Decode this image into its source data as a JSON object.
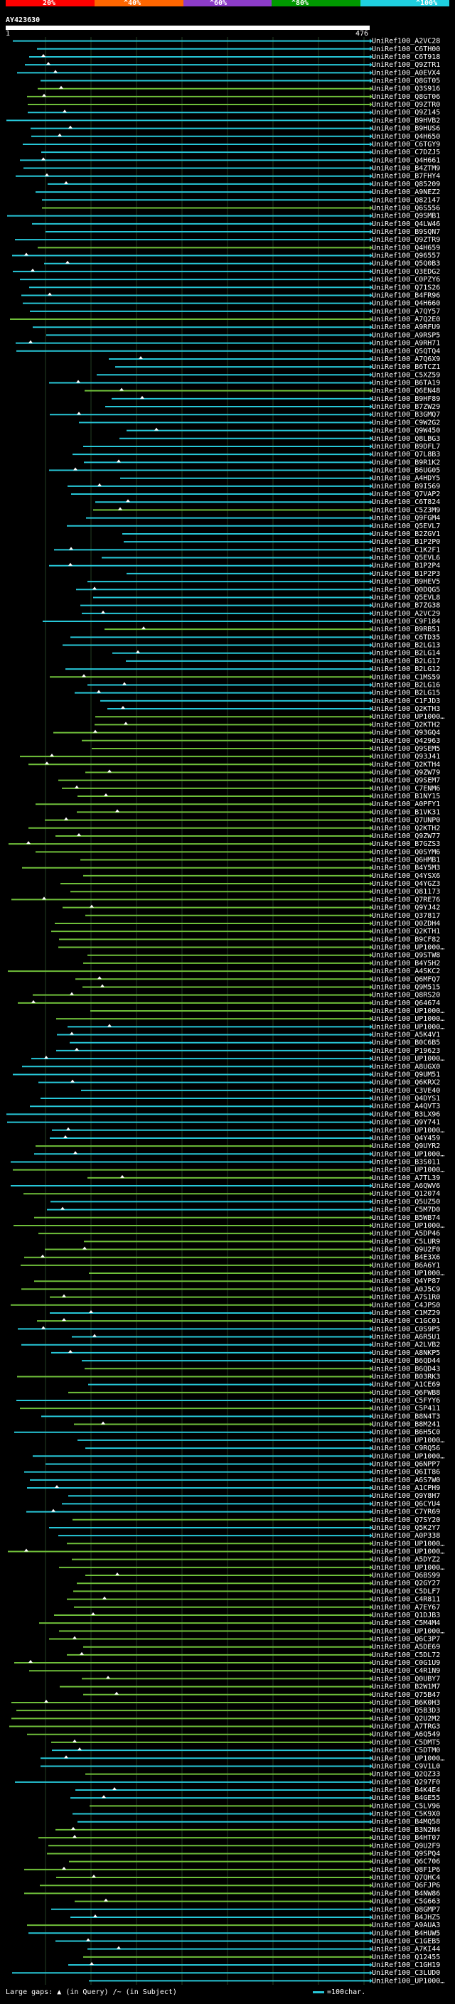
{
  "scale": {
    "colors": [
      "#ff0000",
      "#ff6600",
      "#8c3cc8",
      "#009900",
      "#1fd0e0"
    ],
    "labels": [
      "20%",
      "^40%",
      "^60%",
      "^80%",
      "^100%"
    ]
  },
  "query": {
    "name": "AY423630",
    "start": "1",
    "end": "476"
  },
  "colors": {
    "cyan": "#27c7d8",
    "green": "#6fbf3a",
    "grid": "#234023"
  },
  "hit_names": [
    "UniRef100_A2VC28",
    "UniRef100_C6TH00",
    "UniRef100_C6T918",
    "UniRef100_Q9ZTR1",
    "UniRef100_A0EVX4",
    "UniRef100_Q8GT05",
    "UniRef100_Q3S916",
    "UniRef100_Q8GT06",
    "UniRef100_Q9ZTR0",
    "UniRef100_Q9Z145",
    "UniRef100_B9HVB2",
    "UniRef100_B9HUS6",
    "UniRef100_Q4H650",
    "UniRef100_C6TGY9",
    "UniRef100_C7DZJ5",
    "UniRef100_Q4H661",
    "UniRef100_B4ZTM9",
    "UniRef100_B7FHY4",
    "UniRef100_Q85209",
    "UniRef100_A9NEZ2",
    "UniRef100_Q82147",
    "UniRef100_Q6S556",
    "UniRef100_Q9SMB1",
    "UniRef100_Q4LW46",
    "UniRef100_B9SQN7",
    "UniRef100_Q9ZTR9",
    "UniRef100_Q4H659",
    "UniRef100_Q96557",
    "UniRef100_Q5Q0B3",
    "UniRef100_Q3EDG2",
    "UniRef100_C0PZY6",
    "UniRef100_Q71S26",
    "UniRef100_B4FR96",
    "UniRef100_Q4H660",
    "UniRef100_A7QY57",
    "UniRef100_A7Q2E0",
    "UniRef100_A9RFU9",
    "UniRef100_A9RSP5",
    "UniRef100_A9RH71",
    "UniRef100_Q5QTQ4",
    "UniRef100_A7Q6X9",
    "UniRef100_B6TCZ1",
    "UniRef100_C5XZ59",
    "UniRef100_B6TA19",
    "UniRef100_Q6EN48",
    "UniRef100_B9HF89",
    "UniRef100_B7ZW29",
    "UniRef100_B3GMQ7",
    "UniRef100_C9W2G2",
    "UniRef100_Q9W450",
    "UniRef100_Q8LBG3",
    "UniRef100_B9DFL7",
    "UniRef100_Q7L8B3",
    "UniRef100_B9R1K2",
    "UniRef100_B6UG05",
    "UniRef100_A4HDY5",
    "UniRef100_B9I569",
    "UniRef100_Q7VAP2",
    "UniRef100_C6T824",
    "UniRef100_C5Z3M9",
    "UniRef100_Q9FGM4",
    "UniRef100_Q5EVL7",
    "UniRef100_B2ZGV1",
    "UniRef100_B1P2P0",
    "UniRef100_C1K2F1",
    "UniRef100_Q5EVL6",
    "UniRef100_B1P2P4",
    "UniRef100_B1P2P3",
    "UniRef100_B9HEV5",
    "UniRef100_Q0DQG5",
    "UniRef100_Q5EVL8",
    "UniRef100_B7ZG38",
    "UniRef100_A2VC29",
    "UniRef100_C9F184",
    "UniRef100_B9RB51",
    "UniRef100_C6TD35",
    "UniRef100_B2LG13",
    "UniRef100_B2LG14",
    "UniRef100_B2LG17",
    "UniRef100_B2LG12",
    "UniRef100_C1MS59",
    "UniRef100_B2LG16",
    "UniRef100_B2LG15",
    "UniRef100_C1FJD3",
    "UniRef100_Q2KTH3",
    "UniRef100_UP1000…",
    "UniRef100_Q2KTH2",
    "UniRef100_Q93GQ4",
    "UniRef100_Q42963",
    "UniRef100_Q9SEM5",
    "UniRef100_Q93J41",
    "UniRef100_Q2KTH4",
    "UniRef100_Q9ZW79",
    "UniRef100_Q9SEM7",
    "UniRef100_C7ENM6",
    "UniRef100_B1NY15",
    "UniRef100_A0PFY1",
    "UniRef100_B1VK31",
    "UniRef100_Q7UNP0",
    "UniRef100_Q2KTH2",
    "UniRef100_Q9ZW77",
    "UniRef100_B7GZS3",
    "UniRef100_Q0SYM6",
    "UniRef100_Q6HMB1",
    "UniRef100_B4Y5M3",
    "UniRef100_Q4YSX6",
    "UniRef100_Q4YGZ3",
    "UniRef100_Q81173",
    "UniRef100_Q7RE76",
    "UniRef100_Q9YJ42",
    "UniRef100_Q37817",
    "UniRef100_Q0ZDH4",
    "UniRef100_Q2KTH1",
    "UniRef100_B9CF82",
    "UniRef100_UP1000…",
    "UniRef100_Q9STW8",
    "UniRef100_B4Y5H2",
    "UniRef100_A4SKC2",
    "UniRef100_Q6MFQ7",
    "UniRef100_Q9M515",
    "UniRef100_Q8RS20",
    "UniRef100_Q64674",
    "UniRef100_UP1000…",
    "UniRef100_UP1000…",
    "UniRef100_UP1000…",
    "UniRef100_A5K4V1",
    "UniRef100_B0C6B5",
    "UniRef100_P19623",
    "UniRef100_UP1000…",
    "UniRef100_A8UGX0",
    "UniRef100_Q9UM51",
    "UniRef100_Q6KRX2",
    "UniRef100_C3VE40",
    "UniRef100_Q4DYS1",
    "UniRef100_A4QVT3",
    "UniRef100_B3LX96",
    "UniRef100_Q9Y741",
    "UniRef100_UP1000…",
    "UniRef100_Q4Y459",
    "UniRef100_Q9UYR2",
    "UniRef100_UP1000…",
    "UniRef100_B3S011",
    "UniRef100_UP1000…",
    "UniRef100_A7TL39",
    "UniRef100_A6QWV6",
    "UniRef100_Q12074",
    "UniRef100_Q5UZ50",
    "UniRef100_C5M7D0",
    "UniRef100_B5WB74",
    "UniRef100_UP1000…",
    "UniRef100_A5DP46",
    "UniRef100_C5LUR9",
    "UniRef100_Q9U2F0",
    "UniRef100_B4E3X6",
    "UniRef100_B6A6Y1",
    "UniRef100_UP1000…",
    "UniRef100_Q4YP87",
    "UniRef100_A0J5C9",
    "UniRef100_A7S1R0",
    "UniRef100_C4JPS0",
    "UniRef100_C1MZ29",
    "UniRef100_C1GC01",
    "UniRef100_C0S9P5",
    "UniRef100_A6R5U1",
    "UniRef100_A2LVB2",
    "UniRef100_A8NKP5",
    "UniRef100_B6QD44",
    "UniRef100_B6QD43",
    "UniRef100_B03RK3",
    "UniRef100_A1CE69",
    "UniRef100_Q6FWB8",
    "UniRef100_C5FYY6",
    "UniRef100_C5P411",
    "UniRef100_B8N4T3",
    "UniRef100_B8M241",
    "UniRef100_B6H5C0",
    "UniRef100_UP1000…",
    "UniRef100_C9RQ56",
    "UniRef100_UP1000…",
    "UniRef100_Q6NPP7",
    "UniRef100_Q6IT86",
    "UniRef100_A6S7W0",
    "UniRef100_A1CPH9",
    "UniRef100_Q9Y8H7",
    "UniRef100_Q6CYU4",
    "UniRef100_C7YR69",
    "UniRef100_Q7SY20",
    "UniRef100_Q5K2Y7",
    "UniRef100_A0P338",
    "UniRef100_UP1000…",
    "UniRef100_UP1000…",
    "UniRef100_A5DYZ2",
    "UniRef100_UP1000…",
    "UniRef100_Q6BS99",
    "UniRef100_Q2GY27",
    "UniRef100_C5DLF7",
    "UniRef100_C4R811",
    "UniRef100_A7EY67",
    "UniRef100_Q1DJB3",
    "UniRef100_C5M4M4",
    "UniRef100_UP1000…",
    "UniRef100_Q6C3P7",
    "UniRef100_A5DE69",
    "UniRef100_C5DL72",
    "UniRef100_C0G1U9",
    "UniRef100_C4R1N9",
    "UniRef100_Q0UBY7",
    "UniRef100_B2W1M7",
    "UniRef100_Q75B47",
    "UniRef100_B6K0H3",
    "UniRef100_Q5B3D3",
    "UniRef100_Q2U2M2",
    "UniRef100_A7TRG3",
    "UniRef100_A6Q549",
    "UniRef100_C5DMT5",
    "UniRef100_C5DTM0",
    "UniRef100_UP1000…",
    "UniRef100_C9V1L0",
    "UniRef100_Q2QZ33",
    "UniRef100_Q297F0",
    "UniRef100_B4K4E4",
    "UniRef100_B4GE55",
    "UniRef100_C5LV96",
    "UniRef100_C5K9X0",
    "UniRef100_B4MQ58",
    "UniRef100_B3N2N4",
    "UniRef100_B4HT07",
    "UniRef100_Q9U2F9",
    "UniRef100_Q9SPQ4",
    "UniRef100_Q6C706",
    "UniRef100_Q8F1P6",
    "UniRef100_Q7QHC4",
    "UniRef100_Q6FJP6",
    "UniRef100_B4NW86",
    "UniRef100_C5G663",
    "UniRef100_Q8GMP7",
    "UniRef100_B4JHZ5",
    "UniRef100_A9AUA3",
    "UniRef100_B4HUW5",
    "UniRef100_C1GEB5",
    "UniRef100_A7KI44",
    "UniRef100_Q12455",
    "UniRef100_C1GH19",
    "UniRef100_C3LUD0",
    "UniRef100_UP1000…"
  ],
  "legend": {
    "gaps_label": "Large gaps:",
    "gaps_query": "(in Query)",
    "gaps_subject": "(in Subject)",
    "scale_label": "=100char."
  }
}
